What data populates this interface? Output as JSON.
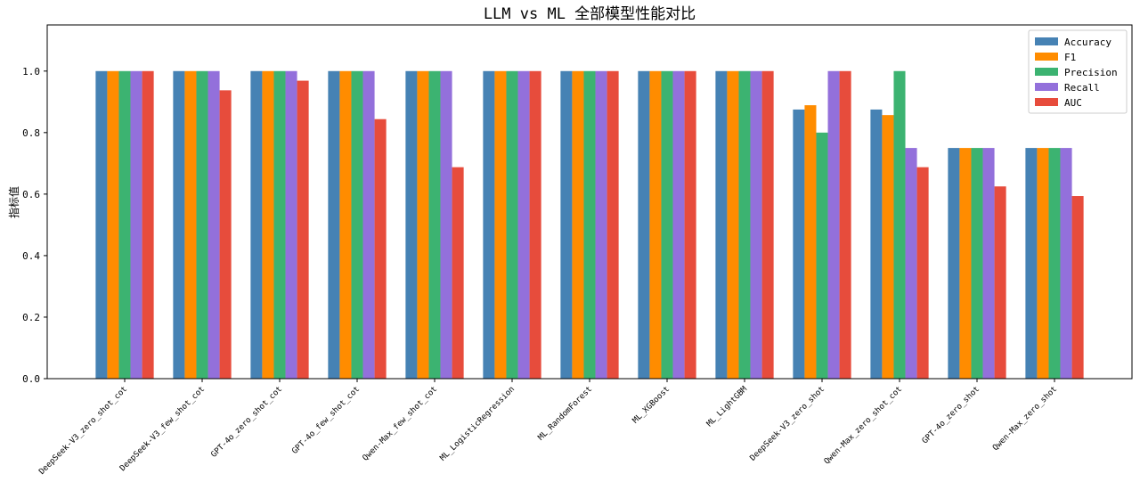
{
  "chart_data": {
    "type": "bar",
    "title": "LLM vs ML 全部模型性能对比",
    "y_label": "指标值",
    "categories": [
      "DeepSeek-V3_zero_shot_cot",
      "DeepSeek-V3_few_shot_cot",
      "GPT-4o_zero_shot_cot",
      "GPT-4o_few_shot_cot",
      "Qwen-Max_few_shot_cot",
      "ML_LogisticRegression",
      "ML_RandomForest",
      "ML_XGBoost",
      "ML_LightGBM",
      "DeepSeek-V3_zero_shot",
      "Qwen-Max_zero_shot_cot",
      "GPT-4o_zero_shot",
      "Qwen-Max_zero_shot"
    ],
    "series": [
      {
        "name": "Accuracy",
        "color": "#4682b4",
        "values": [
          1,
          1,
          1,
          1,
          1,
          1,
          1,
          1,
          1,
          0.875,
          0.875,
          0.75,
          0.75
        ]
      },
      {
        "name": "F1",
        "color": "#ff8c00",
        "values": [
          1,
          1,
          1,
          1,
          1,
          1,
          1,
          1,
          1,
          0.889,
          0.857,
          0.75,
          0.75
        ]
      },
      {
        "name": "Precision",
        "color": "#3cb371",
        "values": [
          1,
          1,
          1,
          1,
          1,
          1,
          1,
          1,
          1,
          0.8,
          1,
          0.75,
          0.75
        ]
      },
      {
        "name": "Recall",
        "color": "#9370db",
        "values": [
          1,
          1,
          1,
          1,
          1,
          1,
          1,
          1,
          1,
          1,
          0.75,
          0.75,
          0.75
        ]
      },
      {
        "name": "AUC",
        "color": "#e74c3c",
        "values": [
          1,
          0.9375,
          0.96875,
          0.84375,
          0.6875,
          1,
          1,
          1,
          1,
          1,
          0.6875,
          0.625,
          0.59375
        ]
      }
    ],
    "ylim": [
      0,
      1.15
    ],
    "yticks": [
      {
        "value": 0,
        "label": "0.0"
      },
      0.2,
      0.4,
      0.6,
      0.8,
      {
        "value": 1,
        "label": "1.0"
      }
    ],
    "legend": "upper right"
  }
}
